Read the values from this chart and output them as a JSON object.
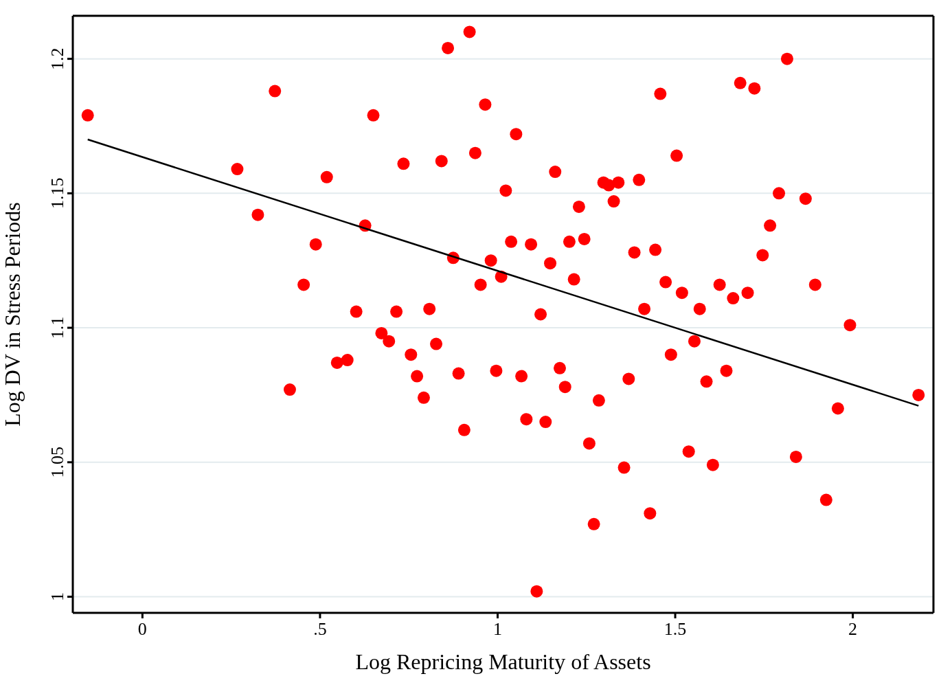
{
  "chart_data": {
    "type": "scatter",
    "xlabel": "Log Repricing Maturity of Assets",
    "ylabel": "Log DV in Stress Periods",
    "xlim": [
      -0.196,
      2.227
    ],
    "ylim": [
      0.994,
      1.216
    ],
    "xticks": [
      0,
      {
        "value": 0.5,
        "label": ".5"
      },
      1,
      1.5,
      2
    ],
    "yticks": [
      1,
      1.05,
      1.1,
      1.15,
      1.2
    ],
    "grid": "y",
    "series": [
      {
        "marker": "circle",
        "color": "#ff0000",
        "x": [
          -0.154,
          0.267,
          0.325,
          0.373,
          0.415,
          0.454,
          0.488,
          0.519,
          0.548,
          0.577,
          0.602,
          0.627,
          0.65,
          0.673,
          0.694,
          0.715,
          0.735,
          0.756,
          0.773,
          0.792,
          0.808,
          0.827,
          0.842,
          0.86,
          0.875,
          0.89,
          0.906,
          0.921,
          0.937,
          0.952,
          0.965,
          0.981,
          0.996,
          1.01,
          1.023,
          1.038,
          1.052,
          1.067,
          1.081,
          1.094,
          1.11,
          1.121,
          1.135,
          1.148,
          1.162,
          1.175,
          1.19,
          1.202,
          1.215,
          1.229,
          1.244,
          1.258,
          1.271,
          1.285,
          1.298,
          1.313,
          1.327,
          1.34,
          1.356,
          1.369,
          1.385,
          1.398,
          1.413,
          1.429,
          1.444,
          1.458,
          1.473,
          1.488,
          1.504,
          1.519,
          1.538,
          1.554,
          1.569,
          1.588,
          1.606,
          1.625,
          1.644,
          1.663,
          1.683,
          1.704,
          1.723,
          1.746,
          1.767,
          1.792,
          1.815,
          1.84,
          1.867,
          1.894,
          1.925,
          1.958,
          1.992,
          2.185
        ],
        "values": [
          1.179,
          1.159,
          1.142,
          1.188,
          1.077,
          1.116,
          1.131,
          1.156,
          1.087,
          1.088,
          1.106,
          1.138,
          1.179,
          1.098,
          1.095,
          1.106,
          1.161,
          1.09,
          1.082,
          1.074,
          1.107,
          1.094,
          1.162,
          1.204,
          1.126,
          1.083,
          1.062,
          1.21,
          1.165,
          1.116,
          1.183,
          1.125,
          1.084,
          1.119,
          1.151,
          1.132,
          1.172,
          1.082,
          1.066,
          1.131,
          1.002,
          1.105,
          1.065,
          1.124,
          1.158,
          1.085,
          1.078,
          1.132,
          1.118,
          1.145,
          1.133,
          1.057,
          1.027,
          1.073,
          1.154,
          1.153,
          1.147,
          1.154,
          1.048,
          1.081,
          1.128,
          1.155,
          1.107,
          1.031,
          1.129,
          1.187,
          1.117,
          1.09,
          1.164,
          1.113,
          1.054,
          1.095,
          1.107,
          1.08,
          1.049,
          1.116,
          1.084,
          1.111,
          1.191,
          1.113,
          1.189,
          1.127,
          1.138,
          1.15,
          1.2,
          1.052,
          1.148,
          1.116,
          1.036,
          1.07,
          1.101,
          1.075
        ]
      },
      {
        "type": "line",
        "color": "#000000",
        "x": [
          -0.154,
          2.185
        ],
        "values": [
          1.17,
          1.071
        ]
      }
    ]
  }
}
